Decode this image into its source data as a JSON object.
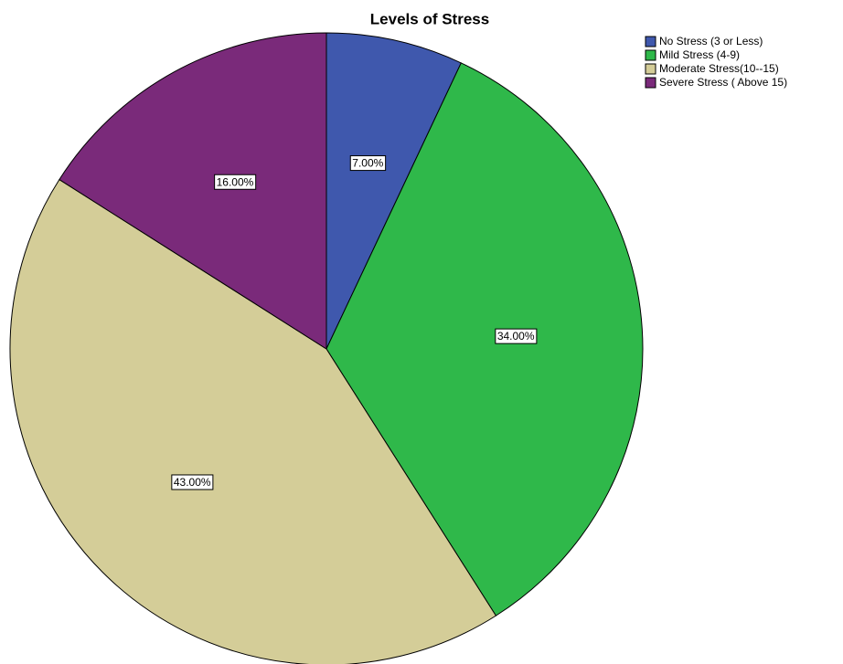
{
  "chart_data": {
    "type": "pie",
    "title": "Levels of Stress",
    "categories": [
      "No Stress (3 or Less)",
      "Mild Stress (4-9)",
      "Moderate Stress(10--15)",
      "Severe Stress ( Above 15)"
    ],
    "values": [
      7,
      34,
      43,
      16
    ],
    "value_labels": [
      "7.00%",
      "34.00%",
      "43.00%",
      "16.00%"
    ],
    "colors": [
      "#3f58ad",
      "#2fb84a",
      "#d4cd98",
      "#7a2a7a"
    ],
    "legend": "top-right"
  }
}
